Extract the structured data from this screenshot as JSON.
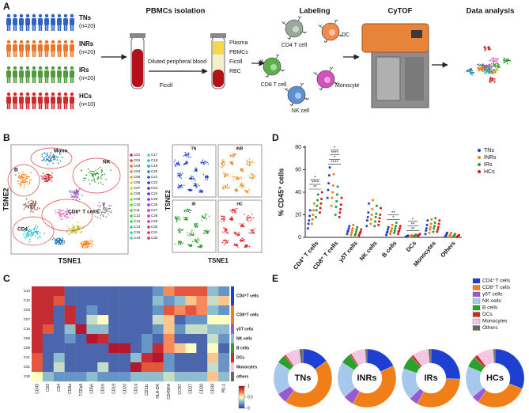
{
  "panel_a": {
    "letter": "A",
    "groups": [
      {
        "name": "TNs",
        "n": "(n=20)",
        "color": "#2f63c0"
      },
      {
        "name": "INRs",
        "n": "(n=20)",
        "color": "#e8762c"
      },
      {
        "name": "IRs",
        "n": "(n=20)",
        "color": "#4f9a3a"
      },
      {
        "name": "HCs",
        "n": "(n=10)",
        "color": "#d22a2a"
      }
    ],
    "steps": [
      "PBMCs isolation",
      "Labeling",
      "CyTOF",
      "Data analysis"
    ],
    "tube_labels": [
      "Diluted peripheral blood",
      "Ficoll"
    ],
    "layers": [
      "Plasma",
      "PBMCs",
      "Ficoll",
      "RBC"
    ],
    "cells": [
      {
        "label": "CD4 T cell",
        "color": "#9aa89c"
      },
      {
        "label": "DC",
        "color": "#f08a4b"
      },
      {
        "label": "CD8 T cell",
        "color": "#5fae4c"
      },
      {
        "label": "Monocyte",
        "color": "#d64fc0"
      },
      {
        "label": "NK cell",
        "color": "#5b8fd6"
      }
    ]
  },
  "panel_b": {
    "letter": "B",
    "x_label": "TSNE1",
    "y_label": "TSNE2",
    "regions": [
      "Mono",
      "B",
      "NK",
      "CD4",
      "CD8⁺ T cells"
    ],
    "legend": [
      "C01",
      "C02",
      "C03",
      "C04",
      "C05",
      "C06",
      "C07",
      "C08",
      "C09",
      "C10",
      "C11",
      "C12",
      "C13",
      "C14",
      "C15",
      "C16",
      "C17",
      "C18",
      "C19",
      "C20",
      "C21",
      "C22",
      "C23",
      "C24",
      "C25",
      "C26",
      "C27",
      "C28",
      "C29",
      "C30",
      "C31",
      "C32"
    ],
    "groups": [
      {
        "name": "TN",
        "color": "#1f3fd0"
      },
      {
        "name": "INR",
        "color": "#f08a1e"
      },
      {
        "name": "IR",
        "color": "#2a9a2a"
      },
      {
        "name": "HC",
        "color": "#e01e1e"
      }
    ]
  },
  "panel_c": {
    "letter": "C"
  },
  "panel_d": {
    "letter": "D"
  },
  "panel_e": {
    "letter": "E"
  },
  "chart_data": [
    {
      "type": "heatmap",
      "columns": [
        "CD45",
        "CD3",
        "CD4",
        "CD8a",
        "TCRγδ",
        "CD56",
        "CD16",
        "CD19",
        "CD20",
        "CD14",
        "CD11c",
        "HLA-DR",
        "CD45RA",
        "CCR7",
        "CD27",
        "CD28",
        "CD38",
        "PD-1"
      ],
      "rows": [
        "C10",
        "C12",
        "C03",
        "C07",
        "C15",
        "C05",
        "C09",
        "C21",
        "C01",
        "C30"
      ],
      "row_groups": [
        {
          "label": "CD4⁺T cells",
          "count": 2,
          "color": "#1f3fd0"
        },
        {
          "label": "CD8⁺T cells",
          "count": 2,
          "color": "#f07f1a"
        },
        {
          "label": "γδT cells",
          "count": 1,
          "color": "#9b59d0"
        },
        {
          "label": "NK cells",
          "count": 1,
          "color": "#8fb8e8"
        },
        {
          "label": "B cells",
          "count": 1,
          "color": "#2ca02c"
        },
        {
          "label": "DCs",
          "count": 1,
          "color": "#d62728"
        },
        {
          "label": "Monocytes",
          "count": 1,
          "color": "#f4c6e4"
        },
        {
          "label": "others",
          "count": 1,
          "color": "#666666"
        }
      ],
      "values": [
        [
          0.9,
          0.9,
          0.9,
          0.1,
          0.1,
          0.1,
          0.1,
          0.1,
          0.1,
          0.1,
          0.1,
          0.2,
          0.7,
          0.8,
          0.8,
          0.8,
          0.3,
          0.2
        ],
        [
          0.9,
          0.9,
          0.8,
          0.1,
          0.1,
          0.1,
          0.1,
          0.1,
          0.1,
          0.1,
          0.1,
          0.3,
          0.2,
          0.3,
          0.6,
          0.7,
          0.4,
          0.6
        ],
        [
          0.9,
          0.9,
          0.1,
          0.9,
          0.1,
          0.2,
          0.1,
          0.1,
          0.1,
          0.1,
          0.1,
          0.2,
          0.8,
          0.7,
          0.8,
          0.7,
          0.3,
          0.2
        ],
        [
          0.9,
          0.9,
          0.1,
          0.9,
          0.1,
          0.4,
          0.5,
          0.1,
          0.1,
          0.1,
          0.1,
          0.4,
          0.6,
          0.1,
          0.2,
          0.2,
          0.5,
          0.5
        ],
        [
          0.9,
          0.8,
          0.1,
          0.3,
          0.95,
          0.3,
          0.3,
          0.1,
          0.1,
          0.1,
          0.1,
          0.2,
          0.6,
          0.2,
          0.4,
          0.4,
          0.3,
          0.3
        ],
        [
          0.9,
          0.1,
          0.1,
          0.2,
          0.1,
          0.95,
          0.9,
          0.1,
          0.1,
          0.1,
          0.2,
          0.1,
          0.7,
          0.1,
          0.1,
          0.1,
          0.4,
          0.2
        ],
        [
          0.9,
          0.1,
          0.1,
          0.1,
          0.1,
          0.1,
          0.1,
          0.95,
          0.95,
          0.1,
          0.2,
          0.9,
          0.7,
          0.6,
          0.5,
          0.1,
          0.5,
          0.1
        ],
        [
          0.8,
          0.1,
          0.3,
          0.1,
          0.1,
          0.1,
          0.1,
          0.1,
          0.1,
          0.3,
          0.9,
          0.95,
          0.2,
          0.1,
          0.1,
          0.1,
          0.6,
          0.2
        ],
        [
          0.8,
          0.1,
          0.4,
          0.1,
          0.1,
          0.1,
          0.4,
          0.1,
          0.1,
          0.95,
          0.8,
          0.8,
          0.2,
          0.1,
          0.1,
          0.1,
          0.4,
          0.2
        ],
        [
          0.5,
          0.3,
          0.2,
          0.2,
          0.2,
          0.3,
          0.2,
          0.2,
          0.2,
          0.3,
          0.3,
          0.3,
          0.4,
          0.3,
          0.3,
          0.3,
          0.6,
          0.3
        ]
      ],
      "clim": [
        0,
        1
      ],
      "colorbar_ticks": [
        0,
        0.5,
        1
      ]
    },
    {
      "type": "dot",
      "y_label": "% CD45⁺ cells",
      "categories": [
        "CD4⁺ T cells",
        "CD8⁺ T cells",
        "γδT cells",
        "NK cells",
        "B cells",
        "DCs",
        "Monocytes",
        "Others"
      ],
      "ylim": [
        0,
        80
      ],
      "yticks": [
        0,
        20,
        40,
        60,
        80
      ],
      "legend": "upper right",
      "series": [
        {
          "name": "TNs",
          "color": "#1f3fd0",
          "values": [
            [
              8,
              12,
              15,
              19,
              24
            ],
            [
              35,
              42,
              48,
              55,
              62
            ],
            [
              3,
              5,
              6,
              8,
              10
            ],
            [
              10,
              15,
              18,
              22,
              30
            ],
            [
              2,
              4,
              5,
              7,
              9
            ],
            [
              0.5,
              0.8,
              1,
              1.2,
              1.6
            ],
            [
              3,
              6,
              8,
              11,
              15
            ],
            [
              0.5,
              1,
              2,
              3,
              4
            ]
          ]
        },
        {
          "name": "INRs",
          "color": "#f07f1a",
          "values": [
            [
              12,
              16,
              20,
              24,
              30
            ],
            [
              28,
              35,
              40,
              46,
              56
            ],
            [
              2,
              4,
              6,
              8,
              11
            ],
            [
              12,
              16,
              20,
              25,
              33
            ],
            [
              3,
              5,
              6,
              8,
              11
            ],
            [
              0.6,
              0.9,
              1.1,
              1.4,
              1.9
            ],
            [
              4,
              7,
              9,
              12,
              16
            ],
            [
              0.5,
              1,
              2,
              2.5,
              4
            ]
          ]
        },
        {
          "name": "IRs",
          "color": "#2a9a3a",
          "values": [
            [
              18,
              24,
              28,
              33,
              38
            ],
            [
              20,
              27,
              32,
              38,
              45
            ],
            [
              2,
              3,
              5,
              7,
              9
            ],
            [
              10,
              14,
              18,
              21,
              28
            ],
            [
              4,
              6,
              8,
              10,
              13
            ],
            [
              0.8,
              1.1,
              1.5,
              1.9,
              2.4
            ],
            [
              5,
              8,
              10,
              13,
              17
            ],
            [
              0.4,
              0.8,
              1.5,
              2,
              3
            ]
          ]
        },
        {
          "name": "HCs",
          "color": "#d7191c",
          "values": [
            [
              22,
              26,
              30,
              34,
              40
            ],
            [
              18,
              22,
              25,
              29,
              35
            ],
            [
              1.5,
              3,
              4,
              5,
              7
            ],
            [
              11,
              14,
              17,
              20,
              26
            ],
            [
              3,
              5,
              6,
              8,
              10
            ],
            [
              1.2,
              1.6,
              2,
              2.4,
              3
            ],
            [
              5,
              7,
              9,
              12,
              15
            ],
            [
              0.3,
              0.6,
              1,
              1.5,
              2
            ]
          ]
        }
      ],
      "annotations": [
        {
          "text": "**",
          "category": 0
        },
        {
          "text": "****",
          "category": 0
        },
        {
          "text": "*",
          "category": 0
        },
        {
          "text": "****",
          "category": 1
        },
        {
          "text": "*",
          "category": 1
        },
        {
          "text": "****",
          "category": 1
        },
        {
          "text": "*",
          "category": 1
        },
        {
          "text": "*",
          "category": 4
        },
        {
          "text": "**",
          "category": 4
        },
        {
          "text": "**",
          "category": 5
        },
        {
          "text": "**",
          "category": 5
        },
        {
          "text": "*",
          "category": 5
        }
      ]
    },
    {
      "type": "donut",
      "categories": [
        "CD4⁺T cells",
        "CD8⁺T cells",
        "γδT cells",
        "NK cells",
        "B cells",
        "DCs",
        "Monocytes",
        "Others"
      ],
      "colors": [
        "#1f3fd0",
        "#f07f1a",
        "#9b59d0",
        "#a6c8ec",
        "#2ca02c",
        "#d62728",
        "#f4c6e4",
        "#666666"
      ],
      "series": [
        {
          "name": "TNs",
          "values": [
            15,
            45,
            6,
            18,
            5,
            1,
            8,
            2
          ]
        },
        {
          "name": "INRs",
          "values": [
            18,
            40,
            6,
            20,
            6,
            1,
            8,
            1
          ]
        },
        {
          "name": "IRs",
          "values": [
            26,
            33,
            5,
            18,
            8,
            1.5,
            9,
            1.5
          ]
        },
        {
          "name": "HCs",
          "values": [
            30,
            28,
            4,
            17,
            6,
            2,
            9,
            1
          ]
        }
      ]
    }
  ]
}
